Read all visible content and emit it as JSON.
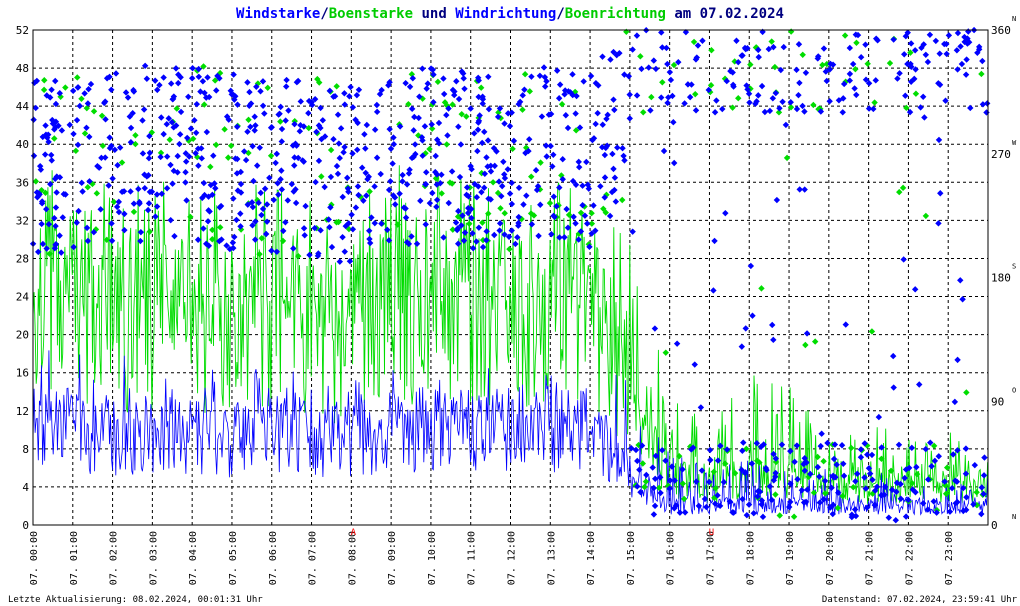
{
  "title_parts": {
    "p1": "Windstarke",
    "s1": "/",
    "p2": "Boenstarke",
    "p3": " und ",
    "p4": "Windrichtung",
    "s2": "/",
    "p5": "Boenrichtung",
    "p6": " am 07.02.2024"
  },
  "colors": {
    "wind": "#0000ff",
    "gust": "#00dd00",
    "grid": "#000000",
    "marker": "#ff0000",
    "title_dark": "#000080"
  },
  "footer": {
    "left": "Letzte Aktualisierung: 08.02.2024, 00:01:31 Uhr",
    "right": "Datenstand: 07.02.2024, 23:59:41 Uhr"
  },
  "chart_data": {
    "type": "line+scatter",
    "x_range": [
      "07.02.2024 00:00",
      "07.02.2024 23:59"
    ],
    "x_ticks": [
      "07. 00:00",
      "07. 01:00",
      "07. 02:00",
      "07. 03:00",
      "07. 04:00",
      "07. 05:00",
      "07. 06:00",
      "07. 07:00",
      "07. 08:00",
      "07. 09:00",
      "07. 10:00",
      "07. 11:00",
      "07. 12:00",
      "07. 13:00",
      "07. 14:00",
      "07. 15:00",
      "07. 16:00",
      "07. 17:00",
      "07. 18:00",
      "07. 19:00",
      "07. 20:00",
      "07. 21:00",
      "07. 22:00",
      "07. 23:00"
    ],
    "y_left": {
      "range": [
        0,
        52
      ],
      "ticks": [
        0,
        4,
        8,
        12,
        16,
        20,
        24,
        28,
        32,
        36,
        40,
        44,
        48,
        52
      ]
    },
    "y_right": {
      "range": [
        0,
        360
      ],
      "ticks": [
        0,
        90,
        180,
        270,
        360
      ],
      "compass": [
        {
          "deg": 0,
          "label": "N"
        },
        {
          "deg": 90,
          "label": "O"
        },
        {
          "deg": 180,
          "label": "S"
        },
        {
          "deg": 270,
          "label": "W"
        },
        {
          "deg": 360,
          "label": "N"
        }
      ]
    },
    "hour_markers": [
      {
        "hour": 8,
        "label": "A"
      },
      {
        "hour": 17,
        "label": "U"
      }
    ],
    "series": [
      {
        "name": "Windstarke",
        "kind": "line",
        "axis": "left",
        "hourly_mean": [
          10,
          10,
          9,
          10,
          9,
          9,
          10,
          9,
          9,
          10,
          10,
          10,
          10,
          10,
          10,
          5,
          2,
          2,
          2,
          2,
          2,
          2,
          2,
          2
        ],
        "hourly_peak": [
          19,
          19,
          18,
          18,
          17,
          17,
          18,
          16,
          15,
          17,
          16,
          17,
          17,
          16,
          16,
          16,
          8,
          6,
          7,
          6,
          6,
          6,
          5,
          5
        ]
      },
      {
        "name": "Boenstarke",
        "kind": "line",
        "axis": "left",
        "hourly_mean": [
          22,
          22,
          21,
          22,
          21,
          20,
          22,
          20,
          19,
          22,
          22,
          22,
          21,
          21,
          22,
          12,
          5,
          4,
          5,
          5,
          4,
          4,
          4,
          4
        ],
        "hourly_peak": [
          38,
          37,
          36,
          37,
          36,
          36,
          36,
          35,
          33,
          38,
          37,
          37,
          36,
          36,
          36,
          30,
          14,
          12,
          16,
          15,
          12,
          11,
          10,
          10
        ]
      },
      {
        "name": "Windrichtung",
        "kind": "scatter",
        "axis": "right",
        "hourly_center": [
          260,
          260,
          265,
          270,
          270,
          265,
          260,
          260,
          255,
          265,
          270,
          265,
          265,
          270,
          265,
          300,
          350,
          355,
          10,
          15,
          350,
          355,
          5,
          10
        ]
      },
      {
        "name": "Boenrichtung",
        "kind": "scatter",
        "axis": "right",
        "hourly_center": [
          260,
          260,
          265,
          270,
          270,
          265,
          260,
          260,
          255,
          265,
          270,
          265,
          265,
          270,
          265,
          300,
          350,
          355,
          10,
          15,
          350,
          355,
          5,
          10
        ]
      }
    ]
  }
}
